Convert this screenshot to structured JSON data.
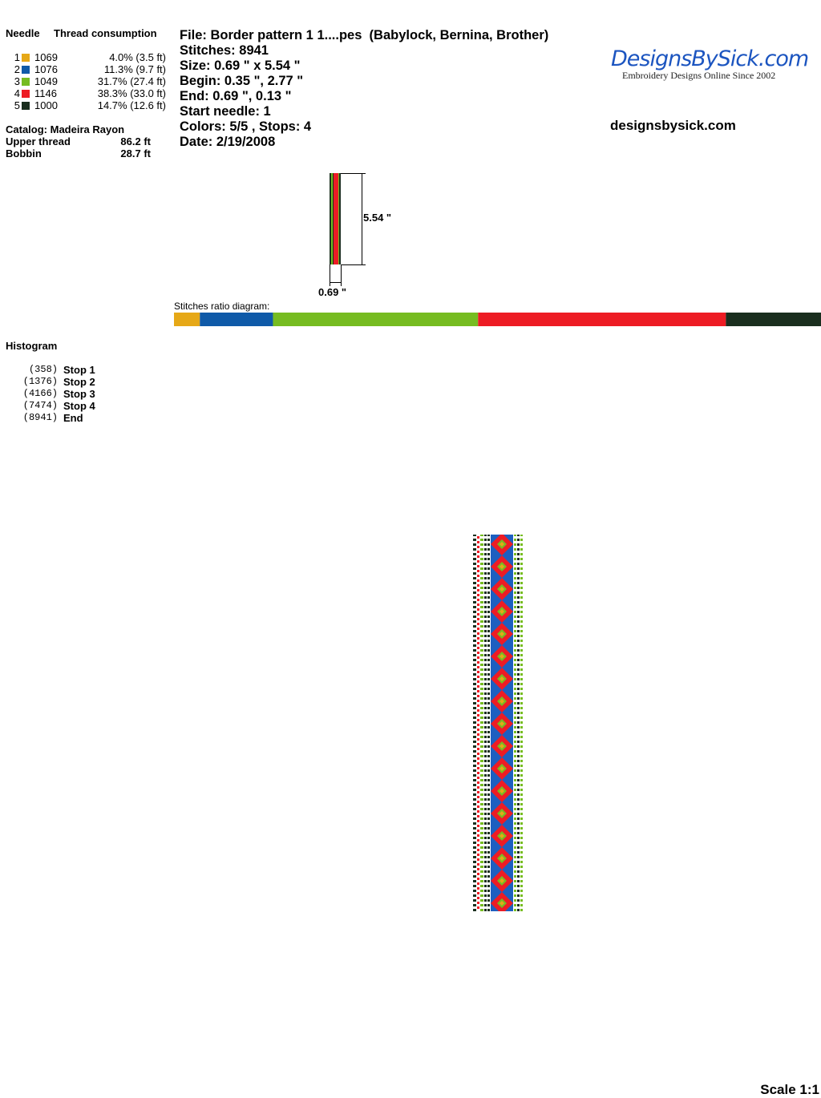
{
  "needle_header": "Needle",
  "consumption_header": "Thread consumption",
  "needles": [
    {
      "number": "1",
      "color": "#e6a817",
      "code": "1069",
      "percent": 4.0,
      "consumption": "4.0% (3.5 ft)"
    },
    {
      "number": "2",
      "color": "#0f5aa8",
      "code": "1076",
      "percent": 11.3,
      "consumption": "11.3% (9.7 ft)"
    },
    {
      "number": "3",
      "color": "#76bc21",
      "code": "1049",
      "percent": 31.7,
      "consumption": "31.7% (27.4 ft)"
    },
    {
      "number": "4",
      "color": "#ed1c24",
      "code": "1146",
      "percent": 38.3,
      "consumption": "38.3% (33.0 ft)"
    },
    {
      "number": "5",
      "color": "#1a2e1e",
      "code": "1000",
      "percent": 14.7,
      "consumption": "14.7% (12.6 ft)"
    }
  ],
  "catalog": "Catalog: Madeira Rayon",
  "totals": [
    {
      "label": "Upper thread",
      "value": "86.2 ft"
    },
    {
      "label": "Bobbin",
      "value": "28.7 ft"
    }
  ],
  "info": [
    "File: Border pattern 1 1....pes  (Babylock, Bernina, Brother)",
    "Stitches: 8941",
    "Size: 0.69 \" x 5.54 \"",
    "Begin: 0.35 \", 2.77 \"",
    "End: 0.69 \", 0.13 \"",
    "Start needle: 1",
    "Colors: 5/5 , Stops: 4",
    "Date: 2/19/2008"
  ],
  "logo": {
    "title": "DesignsBySick.com",
    "tagline": "Embroidery Designs Online Since 2002"
  },
  "website": "designsbysick.com",
  "preview": {
    "height_label": "5.54 \"",
    "width_label": "0.69 \""
  },
  "ratio_title": "Stitches ratio diagram:",
  "histogram": {
    "title": "Histogram",
    "rows": [
      {
        "count": "(358)",
        "label": "Stop 1"
      },
      {
        "count": "(1376)",
        "label": "Stop 2"
      },
      {
        "count": "(4166)",
        "label": "Stop 3"
      },
      {
        "count": "(7474)",
        "label": "Stop 4"
      },
      {
        "count": "(8941)",
        "label": "End"
      }
    ]
  },
  "scale": "Scale 1:1"
}
